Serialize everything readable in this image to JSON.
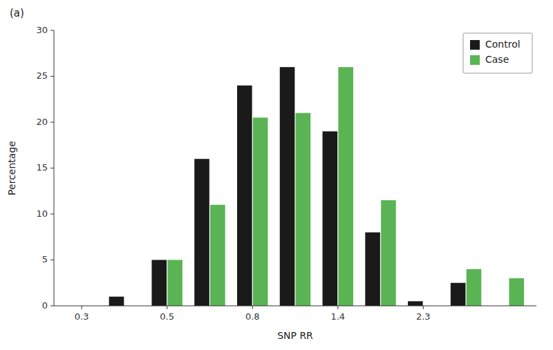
{
  "chart_data": {
    "type": "bar",
    "title": "(a)",
    "x_label": "SNP RR",
    "y_label": "Percentage",
    "categories": [
      "0.3",
      null,
      "0.5",
      null,
      "0.8",
      null,
      "1.4",
      null,
      "2.3",
      null,
      null
    ],
    "series": [
      {
        "name": "Control",
        "color": "#1a1a1a",
        "values": [
          0.0,
          1.0,
          5.0,
          16.0,
          24.0,
          26.0,
          19.0,
          8.0,
          0.5,
          2.5,
          0.0
        ]
      },
      {
        "name": "Case",
        "color": "#5ab454",
        "values": [
          0.0,
          0.0,
          5.0,
          11.0,
          20.5,
          21.0,
          26.0,
          11.5,
          0.0,
          4.0,
          3.0
        ]
      }
    ],
    "ylim": [
      0,
      30
    ],
    "yticks": [
      0,
      5,
      10,
      15,
      20,
      25,
      30
    ],
    "grid": false,
    "legend": "upper right"
  }
}
